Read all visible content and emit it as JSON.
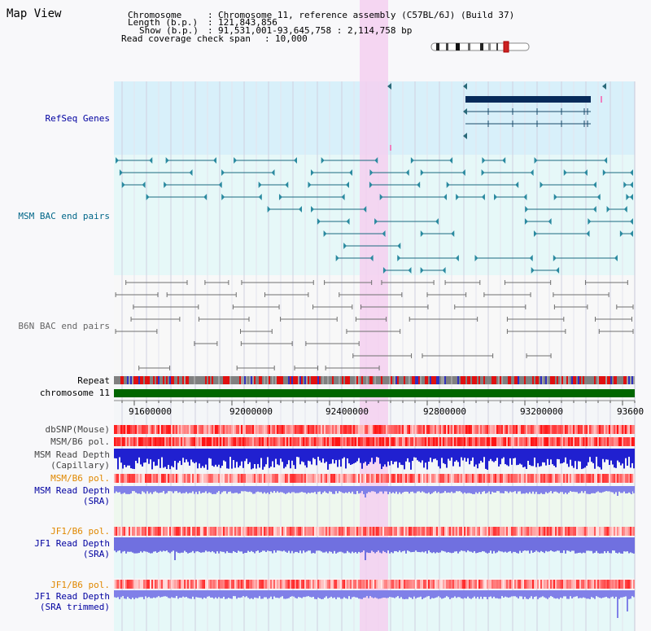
{
  "view_title": "Map View",
  "header": {
    "chromosome_key": "Chromosome",
    "chromosome_val": "Chromosome 11, reference assembly (C57BL/6J) (Build 37)",
    "length_key": "Length (b.p.)",
    "length_val": "121,843,856",
    "show_key": "Show (b.p.)",
    "show_val": "91,531,001-93,645,758 : 2,114,758 bp",
    "coverage_key": "Read coverage check span",
    "coverage_val": "10,000"
  },
  "tracks": {
    "refseq": "RefSeq Genes",
    "msm_bac": "MSM BAC end pairs",
    "b6n_bac": "B6N BAC end pairs",
    "repeat": "Repeat",
    "chromosome": "chromosome 11",
    "dbsnp": "dbSNP(Mouse)",
    "msm_b6_pol_1": "MSM/B6 pol.",
    "msm_read_depth_cap_1": "MSM Read Depth",
    "msm_read_depth_cap_2": "(Capillary)",
    "msm_b6_pol_2": "MSM/B6 pol.",
    "msm_read_depth_sra_1": "MSM Read Depth",
    "msm_read_depth_sra_2": "(SRA)",
    "jf1_b6_pol_1": "JF1/B6 pol.",
    "jf1_read_depth_sra_1": "JF1 Read Depth",
    "jf1_read_depth_sra_2": "(SRA)",
    "jf1_b6_pol_2": "JF1/B6 pol.",
    "jf1_read_depth_trim_1": "JF1 Read Depth",
    "jf1_read_depth_trim_2": "(SRA trimmed)"
  },
  "axis": {
    "ticks": [
      "91600000",
      "92000000",
      "92400000",
      "92800000",
      "93200000",
      "93600"
    ]
  },
  "colors": {
    "refseq_bg": "#d8f0fa",
    "refseq_label": "#0000a0",
    "msm_label": "#006688",
    "b6n_label": "#666666",
    "orange_label": "#e08800",
    "blue_label": "#0000a0",
    "highlight": "#f4d0f0",
    "chromosome_bar": "#006600"
  }
}
